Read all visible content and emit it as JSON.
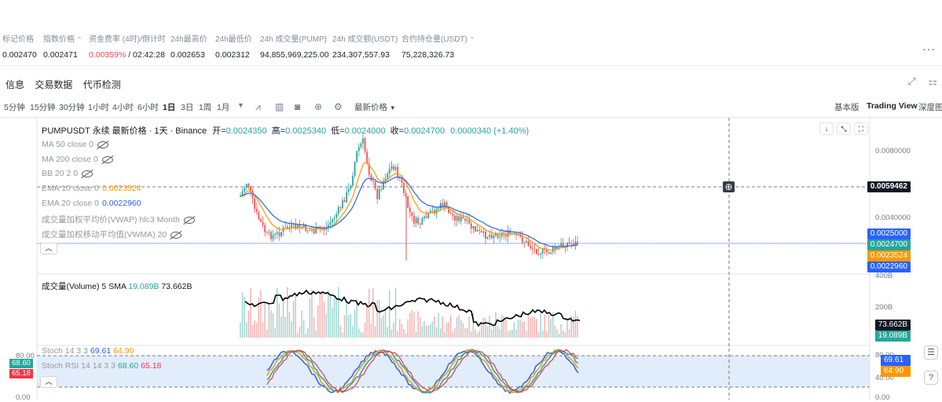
{
  "stats": {
    "items": [
      {
        "label": "标记价格",
        "value": "0.002470"
      },
      {
        "label": "指数价格",
        "value": "0.002471"
      },
      {
        "label": "资金费率 (4时)/倒计时",
        "value_rate": "0.00359%",
        "value_timer": " / 02:42:28"
      },
      {
        "label": "24h最高价",
        "value": "0.002653"
      },
      {
        "label": "24h最低价",
        "value": "0.002312"
      },
      {
        "label": "24h 成交量(PUMP)",
        "value": "94,855,969,225.00"
      },
      {
        "label": "24h 成交额(USDT)",
        "value": "234,307,557.93"
      },
      {
        "label": "合约持仓量(USDT)",
        "value": "75,228,326.73"
      }
    ],
    "more_label": "···"
  },
  "subtabs": [
    "信息",
    "交易数据",
    "代币检测"
  ],
  "toolbar": {
    "intervals": [
      "5分钟",
      "15分钟",
      "30分钟",
      "1小时",
      "4小时",
      "6小时",
      "1日",
      "3日",
      "1周",
      "1月"
    ],
    "selected": "1日",
    "price_type": "最新价格",
    "views": [
      "基本版",
      "Trading View",
      "深度图"
    ],
    "selected_view": "Trading View"
  },
  "legend": {
    "symbol": "PUMPUSDT 永续 最新价格 · 1天 · Binance",
    "open_label": "开=",
    "open": "0.0024350",
    "high_label": "高=",
    "high": "0.0025340",
    "low_label": "低=",
    "low": "0.0024000",
    "close_label": "收=",
    "close": "0.0024700",
    "change": "0.0000340 (+1.40%)",
    "indicators": [
      {
        "name": "MA 50 close 0",
        "value": "",
        "color": ""
      },
      {
        "name": "MA 200 close 0",
        "value": "",
        "color": ""
      },
      {
        "name": "BB 20 2 0",
        "value": "",
        "color": ""
      },
      {
        "name": "EMA 10 close 0",
        "value": "0.0023524",
        "color": "#ff9800"
      },
      {
        "name": "EMA 20 close 0",
        "value": "0.0022960",
        "color": "#2962ff"
      },
      {
        "name": "成交量加权平均价(VWAP) hlc3 Month",
        "value": "",
        "color": ""
      },
      {
        "name": "成交量加权移动平均值(VWMA) 20",
        "value": "",
        "color": ""
      }
    ]
  },
  "volume_legend": {
    "name": "成交量(Volume) 5 SMA",
    "sma": "19.089B",
    "vol": "73.662B"
  },
  "stoch_legend": [
    {
      "name": "Stoch 14 3 3",
      "k": "69.61",
      "d": "64.90"
    },
    {
      "name": "Stoch RSI 14 14 3 3",
      "k": "68.60",
      "d": "65.18"
    }
  ],
  "axis": {
    "price_ticks": [
      "0.0080000",
      "0.0040000"
    ],
    "volume_ticks": [
      "400B",
      "200B"
    ],
    "stoch_ticks": [
      "80.00",
      "40.00",
      "0.00"
    ],
    "crosshair_price": "0.0059462",
    "tags": [
      {
        "text": "0.0025000",
        "color": "#2962ff"
      },
      {
        "text": "0.0024700",
        "color": "#26a69a"
      },
      {
        "text": "0.0023524",
        "color": "#ff9800"
      },
      {
        "text": "0.0022960",
        "color": "#2962ff"
      },
      {
        "text": "73.662B",
        "color": "#131722"
      },
      {
        "text": "19.089B",
        "color": "#26a69a"
      },
      {
        "text": "69.61",
        "color": "#2962ff"
      },
      {
        "text": "64.90",
        "color": "#ff9800"
      }
    ],
    "left_tags": [
      {
        "text": "68.60",
        "color": "#26a69a"
      },
      {
        "text": "65.18",
        "color": "#f23645"
      }
    ],
    "left_stoch_ticks": [
      "80.00",
      "0.00"
    ]
  },
  "colors": {
    "up": "#26a69a",
    "down": "#ef5350",
    "ema10": "#ff9800",
    "ema20": "#2962ff"
  }
}
